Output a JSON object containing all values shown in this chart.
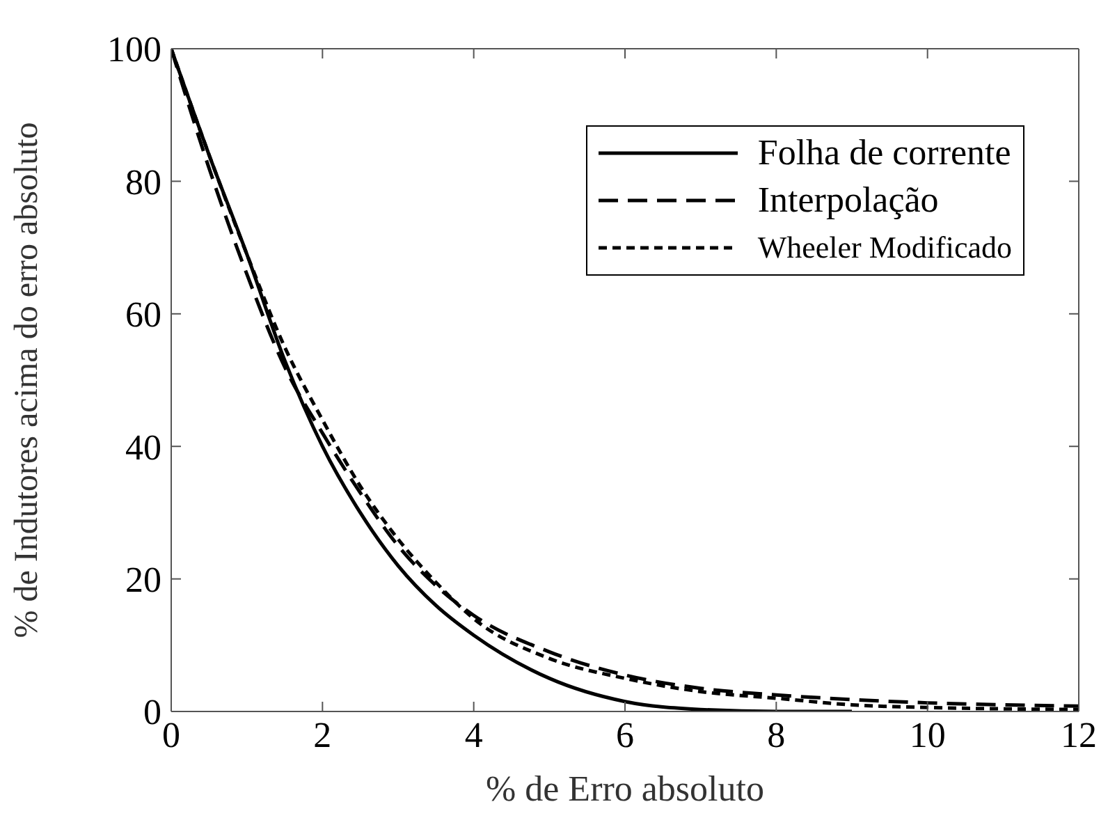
{
  "chart_data": {
    "type": "line",
    "xlabel": "% de Erro absoluto",
    "ylabel": "% de Indutores acima do erro absoluto",
    "xlim": [
      0,
      12
    ],
    "ylim": [
      0,
      100
    ],
    "xticks": [
      0,
      2,
      4,
      6,
      8,
      10,
      12
    ],
    "yticks": [
      0,
      20,
      40,
      60,
      80,
      100
    ],
    "legend": "top right",
    "marker": "none",
    "series": [
      {
        "name": "Folha de corrente",
        "color": "#000000",
        "line_style": "solid",
        "x": [
          0,
          0.5,
          1,
          1.5,
          2,
          2.5,
          3,
          3.5,
          4,
          5,
          6,
          7,
          8,
          9
        ],
        "values": [
          100,
          84,
          69,
          53,
          40,
          30,
          22,
          16,
          11.5,
          5,
          1.5,
          0.3,
          0,
          0
        ]
      },
      {
        "name": "Interpolação",
        "color": "#000000",
        "line_style": "dashed",
        "x": [
          0,
          0.5,
          1,
          1.5,
          2,
          2.5,
          3,
          3.5,
          4,
          5,
          6,
          7,
          8,
          9,
          10,
          11,
          12
        ],
        "values": [
          100,
          82,
          66,
          52,
          42,
          33,
          25,
          19,
          14.5,
          9,
          5.5,
          3.5,
          2.5,
          1.8,
          1.3,
          1,
          0.8
        ]
      },
      {
        "name": "Wheeler Modificado",
        "color": "#000000",
        "line_style": "dotted",
        "x": [
          0,
          0.5,
          1,
          1.5,
          2,
          2.5,
          3,
          3.5,
          4,
          5,
          6,
          7,
          8,
          9,
          10,
          11,
          12
        ],
        "values": [
          100,
          84,
          69,
          55,
          44,
          34,
          26,
          19.5,
          14,
          8,
          5,
          3,
          2,
          1,
          0.6,
          0.4,
          0.3
        ]
      }
    ]
  }
}
